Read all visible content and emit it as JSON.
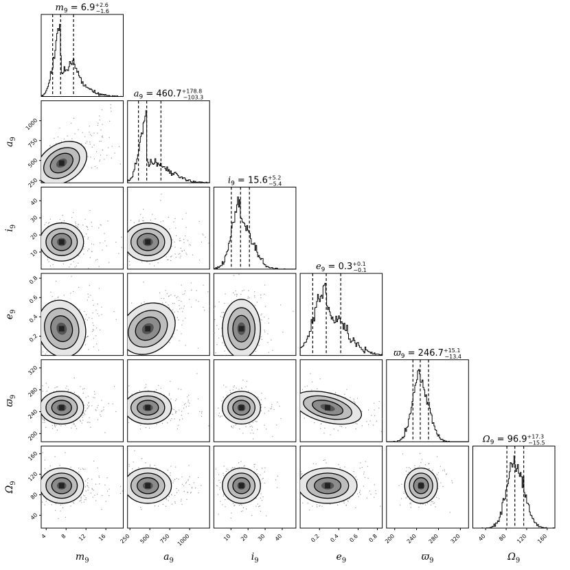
{
  "chart_data": {
    "type": "corner",
    "parameters": [
      {
        "key": "m",
        "symbol": "m",
        "label": "m",
        "subscript": "9",
        "range": [
          3,
          19.5
        ],
        "ticks": [
          4,
          8,
          12,
          16
        ],
        "tick_labels": [
          "4",
          "8",
          "12",
          "16"
        ],
        "median": "6.9",
        "plus": "+2.6",
        "minus": "−1.6",
        "q16": 5.3,
        "q50": 6.9,
        "q84": 9.5
      },
      {
        "key": "a",
        "symbol": "a",
        "label": "a",
        "subscript": "9",
        "range": [
          220,
          1250
        ],
        "ticks": [
          250,
          500,
          750,
          1000
        ],
        "tick_labels": [
          "250",
          "500",
          "750",
          "1000"
        ],
        "median": "460.7",
        "plus": "+178.8",
        "minus": "−103.3",
        "q16": 357.4,
        "q50": 460.7,
        "q84": 639.5
      },
      {
        "key": "i",
        "symbol": "i",
        "label": "i",
        "subscript": "9",
        "range": [
          0,
          48
        ],
        "ticks": [
          10,
          20,
          30,
          40
        ],
        "tick_labels": [
          "10",
          "20",
          "30",
          "40"
        ],
        "median": "15.6",
        "plus": "+5.2",
        "minus": "−5.4",
        "q16": 10.2,
        "q50": 15.6,
        "q84": 20.8
      },
      {
        "key": "e",
        "symbol": "e",
        "label": "e",
        "subscript": "9",
        "range": [
          0.0,
          0.85
        ],
        "ticks": [
          0.2,
          0.4,
          0.6,
          0.8
        ],
        "tick_labels": [
          "0.2",
          "0.4",
          "0.6",
          "0.8"
        ],
        "median": "0.3",
        "plus": "+0.1",
        "minus": "−0.1",
        "q16": 0.13,
        "q50": 0.27,
        "q84": 0.42
      },
      {
        "key": "varpi",
        "symbol": "ϖ",
        "label": "ϖ",
        "subscript": "9",
        "range": [
          185,
          335
        ],
        "ticks": [
          200,
          240,
          280,
          320
        ],
        "tick_labels": [
          "200",
          "240",
          "280",
          "320"
        ],
        "median": "246.7",
        "plus": "+15.1",
        "minus": "−13.4",
        "q16": 233.3,
        "q50": 246.7,
        "q84": 261.8
      },
      {
        "key": "omega",
        "symbol": "Ω",
        "label": "Ω",
        "subscript": "9",
        "range": [
          15,
          175
        ],
        "ticks": [
          40,
          80,
          120,
          160
        ],
        "tick_labels": [
          "40",
          "80",
          "120",
          "160"
        ],
        "median": "96.9",
        "plus": "+17.3",
        "minus": "−15.5",
        "q16": 81.4,
        "q50": 96.9,
        "q84": 114.2
      }
    ],
    "titles": [
      "m9 = 6.9 +2.6 −1.6",
      "a9 = 460.7 +178.8 −103.3",
      "i9 = 15.6 +5.2 −5.4",
      "e9 = 0.3 +0.1 −0.1",
      "ϖ9 = 246.7 +15.1 −13.4",
      "Ω9 = 96.9 +17.3 −15.5"
    ],
    "y_tick_sets": {
      "a": [
        "250",
        "500",
        "750",
        "1000"
      ],
      "i": [
        "10",
        "20",
        "30",
        "40"
      ],
      "e": [
        "0.2",
        "0.4",
        "0.6",
        "0.8"
      ],
      "varpi": [
        "200",
        "240",
        "280",
        "320"
      ],
      "omega": [
        "40",
        "80",
        "120",
        "160"
      ]
    },
    "diagonal": "1D marginal histograms with dashed lines at 16th, 50th, 84th percentiles",
    "off_diagonal": "2D density contours with scatter points",
    "correlation_notes": {
      "m-a": 0.6,
      "a-e": 0.6,
      "e-varpi": -0.45
    }
  }
}
